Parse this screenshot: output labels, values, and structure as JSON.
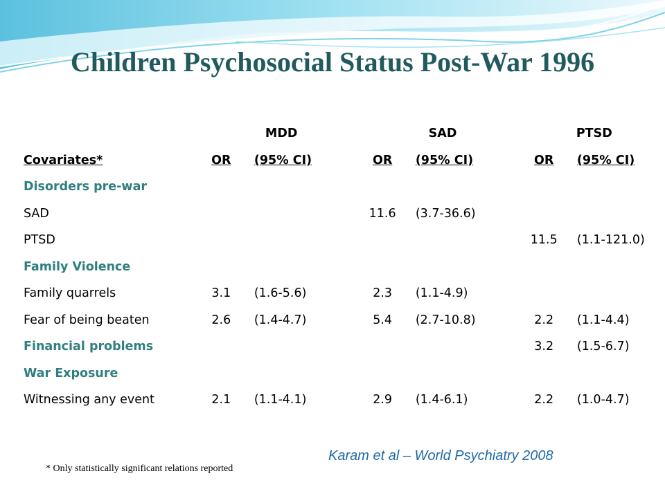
{
  "slide": {
    "title": "Children Psychosocial Status Post-War 1996",
    "citation": "Karam et al – World Psychiatry 2008",
    "footnote": "* Only statistically significant relations reported",
    "colors": {
      "title": "#215a5e",
      "section": "#2f7f7f",
      "citation": "#1f6aa5",
      "wave": "#5bc7e0"
    }
  },
  "table": {
    "groups": [
      "MDD",
      "SAD",
      "PTSD"
    ],
    "header": [
      "Covariates*",
      "OR",
      "(95% CI)",
      "OR",
      "(95% CI)",
      "OR",
      "(95% CI)"
    ],
    "rows": [
      {
        "type": "section",
        "cells": [
          "Disorders pre-war",
          "",
          "",
          "",
          "",
          "",
          ""
        ]
      },
      {
        "type": "data",
        "cells": [
          "SAD",
          "",
          "",
          "11.6",
          "(3.7-36.6)",
          "",
          ""
        ]
      },
      {
        "type": "data",
        "cells": [
          "PTSD",
          "",
          "",
          "",
          "",
          "11.5",
          "(1.1-121.0)"
        ]
      },
      {
        "type": "section",
        "cells": [
          "Family Violence",
          "",
          "",
          "",
          "",
          "",
          ""
        ]
      },
      {
        "type": "data",
        "cells": [
          "Family quarrels",
          "3.1",
          "(1.6-5.6)",
          "2.3",
          "(1.1-4.9)",
          "",
          ""
        ]
      },
      {
        "type": "data",
        "cells": [
          "Fear of being beaten",
          "2.6",
          "(1.4-4.7)",
          "5.4",
          "(2.7-10.8)",
          "2.2",
          "(1.1-4.4)"
        ]
      },
      {
        "type": "section",
        "cells": [
          "Financial problems",
          "",
          "",
          "",
          "",
          "3.2",
          "(1.5-6.7)"
        ]
      },
      {
        "type": "section",
        "cells": [
          "War Exposure",
          "",
          "",
          "",
          "",
          "",
          ""
        ]
      },
      {
        "type": "data",
        "cells": [
          "Witnessing any event",
          "2.1",
          "(1.1-4.1)",
          "2.9",
          "(1.4-6.1)",
          "2.2",
          "(1.0-4.7)"
        ]
      }
    ]
  }
}
